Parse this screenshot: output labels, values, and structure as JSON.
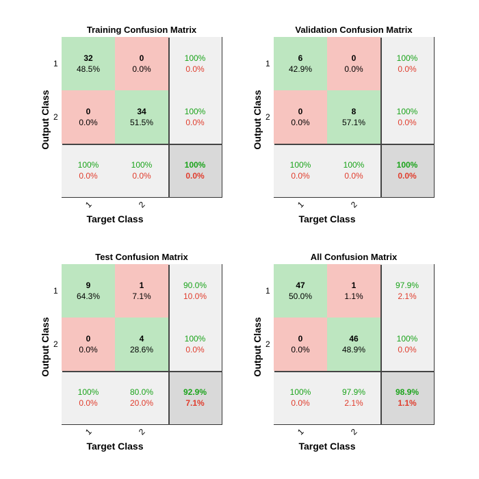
{
  "chart_data": [
    {
      "type": "heatmap",
      "title": "Training Confusion Matrix",
      "xlabel": "Target Class",
      "ylabel": "Output Class",
      "classes": [
        "1",
        "2"
      ],
      "matrix": [
        [
          {
            "count": "32",
            "pct": "48.5%"
          },
          {
            "count": "0",
            "pct": "0.0%"
          }
        ],
        [
          {
            "count": "0",
            "pct": "0.0%"
          },
          {
            "count": "34",
            "pct": "51.5%"
          }
        ]
      ],
      "row_summary": [
        {
          "good": "100%",
          "bad": "0.0%"
        },
        {
          "good": "100%",
          "bad": "0.0%"
        }
      ],
      "col_summary": [
        {
          "good": "100%",
          "bad": "0.0%"
        },
        {
          "good": "100%",
          "bad": "0.0%"
        }
      ],
      "total": {
        "good": "100%",
        "bad": "0.0%"
      }
    },
    {
      "type": "heatmap",
      "title": "Validation Confusion Matrix",
      "xlabel": "Target Class",
      "ylabel": "Output Class",
      "classes": [
        "1",
        "2"
      ],
      "matrix": [
        [
          {
            "count": "6",
            "pct": "42.9%"
          },
          {
            "count": "0",
            "pct": "0.0%"
          }
        ],
        [
          {
            "count": "0",
            "pct": "0.0%"
          },
          {
            "count": "8",
            "pct": "57.1%"
          }
        ]
      ],
      "row_summary": [
        {
          "good": "100%",
          "bad": "0.0%"
        },
        {
          "good": "100%",
          "bad": "0.0%"
        }
      ],
      "col_summary": [
        {
          "good": "100%",
          "bad": "0.0%"
        },
        {
          "good": "100%",
          "bad": "0.0%"
        }
      ],
      "total": {
        "good": "100%",
        "bad": "0.0%"
      }
    },
    {
      "type": "heatmap",
      "title": "Test Confusion Matrix",
      "xlabel": "Target Class",
      "ylabel": "Output Class",
      "classes": [
        "1",
        "2"
      ],
      "matrix": [
        [
          {
            "count": "9",
            "pct": "64.3%"
          },
          {
            "count": "1",
            "pct": "7.1%"
          }
        ],
        [
          {
            "count": "0",
            "pct": "0.0%"
          },
          {
            "count": "4",
            "pct": "28.6%"
          }
        ]
      ],
      "row_summary": [
        {
          "good": "90.0%",
          "bad": "10.0%"
        },
        {
          "good": "100%",
          "bad": "0.0%"
        }
      ],
      "col_summary": [
        {
          "good": "100%",
          "bad": "0.0%"
        },
        {
          "good": "80.0%",
          "bad": "20.0%"
        }
      ],
      "total": {
        "good": "92.9%",
        "bad": "7.1%"
      }
    },
    {
      "type": "heatmap",
      "title": "All Confusion Matrix",
      "xlabel": "Target Class",
      "ylabel": "Output Class",
      "classes": [
        "1",
        "2"
      ],
      "matrix": [
        [
          {
            "count": "47",
            "pct": "50.0%"
          },
          {
            "count": "1",
            "pct": "1.1%"
          }
        ],
        [
          {
            "count": "0",
            "pct": "0.0%"
          },
          {
            "count": "46",
            "pct": "48.9%"
          }
        ]
      ],
      "row_summary": [
        {
          "good": "97.9%",
          "bad": "2.1%"
        },
        {
          "good": "100%",
          "bad": "0.0%"
        }
      ],
      "col_summary": [
        {
          "good": "100%",
          "bad": "0.0%"
        },
        {
          "good": "97.9%",
          "bad": "2.1%"
        }
      ],
      "total": {
        "good": "98.9%",
        "bad": "1.1%"
      }
    }
  ],
  "colors": {
    "correct_cell": "#bde6c0",
    "wrong_cell": "#f7c4bf",
    "summary_cell": "#f0f0f0",
    "total_cell": "#d9d9d9",
    "good_text": "#1aa31a",
    "bad_text": "#e03c2c"
  }
}
